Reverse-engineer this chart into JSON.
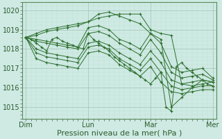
{
  "bg_color": "#ceeae3",
  "grid_color_major": "#a8c8bc",
  "grid_color_minor": "#bdddd5",
  "line_color": "#2d6e2d",
  "marker_color": "#2d6e2d",
  "xlabel": "Pression niveau de la mer( hPa )",
  "xlabel_fontsize": 8,
  "yticks": [
    1015,
    1016,
    1017,
    1018,
    1019,
    1020
  ],
  "ylim": [
    1014.4,
    1020.4
  ],
  "xtick_labels": [
    "Dim",
    "Lun",
    "Mar",
    "Mer"
  ],
  "xtick_positions": [
    0,
    72,
    144,
    216
  ],
  "xlim": [
    -4,
    220
  ],
  "series": [
    [
      0,
      1018.6,
      12,
      1018.8,
      24,
      1019.0,
      36,
      1019.1,
      48,
      1019.2,
      60,
      1019.3,
      72,
      1019.4,
      84,
      1019.6,
      96,
      1019.7,
      108,
      1019.8,
      120,
      1019.8,
      132,
      1019.8,
      144,
      1019.0,
      156,
      1018.8,
      168,
      1018.7,
      180,
      1016.2,
      192,
      1016.1,
      204,
      1016.2,
      216,
      1016.3
    ],
    [
      0,
      1018.6,
      12,
      1018.7,
      24,
      1018.9,
      36,
      1019.0,
      48,
      1019.1,
      60,
      1019.2,
      72,
      1019.4,
      84,
      1019.8,
      96,
      1019.9,
      108,
      1019.7,
      120,
      1019.5,
      132,
      1019.3,
      144,
      1018.8,
      156,
      1018.5,
      168,
      1015.0,
      180,
      1015.5,
      192,
      1016.0,
      204,
      1016.4,
      216,
      1016.3
    ],
    [
      0,
      1018.6,
      12,
      1018.5,
      24,
      1018.4,
      36,
      1018.3,
      48,
      1018.2,
      60,
      1018.1,
      72,
      1019.1,
      84,
      1019.2,
      96,
      1019.0,
      108,
      1018.5,
      120,
      1018.3,
      132,
      1018.0,
      144,
      1018.8,
      156,
      1018.3,
      168,
      1017.1,
      180,
      1016.8,
      192,
      1016.9,
      204,
      1017.0,
      216,
      1016.5
    ],
    [
      0,
      1018.6,
      12,
      1018.4,
      24,
      1018.3,
      36,
      1018.2,
      48,
      1018.1,
      60,
      1018.0,
      72,
      1018.8,
      84,
      1018.9,
      96,
      1018.7,
      108,
      1018.3,
      120,
      1018.0,
      132,
      1017.7,
      144,
      1018.5,
      156,
      1017.8,
      168,
      1016.8,
      180,
      1016.5,
      192,
      1016.6,
      204,
      1016.7,
      216,
      1016.4
    ],
    [
      0,
      1018.6,
      12,
      1018.0,
      24,
      1017.8,
      36,
      1017.7,
      48,
      1017.6,
      60,
      1017.5,
      72,
      1018.3,
      84,
      1018.4,
      96,
      1018.2,
      108,
      1017.8,
      120,
      1017.5,
      132,
      1017.2,
      144,
      1017.9,
      156,
      1017.3,
      168,
      1016.4,
      180,
      1016.2,
      192,
      1016.3,
      204,
      1016.4,
      216,
      1016.3
    ],
    [
      0,
      1018.6,
      12,
      1017.8,
      24,
      1017.6,
      36,
      1017.5,
      48,
      1017.4,
      60,
      1017.3,
      72,
      1018.1,
      84,
      1018.2,
      96,
      1018.0,
      108,
      1017.5,
      120,
      1017.2,
      132,
      1016.9,
      144,
      1017.5,
      156,
      1016.8,
      168,
      1016.1,
      180,
      1015.9,
      192,
      1016.0,
      204,
      1016.1,
      216,
      1016.1
    ],
    [
      0,
      1018.6,
      12,
      1017.5,
      24,
      1017.3,
      36,
      1017.2,
      48,
      1017.1,
      60,
      1017.0,
      72,
      1017.8,
      84,
      1017.9,
      96,
      1017.7,
      108,
      1017.2,
      120,
      1016.9,
      132,
      1016.6,
      144,
      1017.1,
      156,
      1016.3,
      168,
      1015.8,
      180,
      1015.7,
      192,
      1015.8,
      204,
      1015.9,
      216,
      1015.9
    ],
    [
      0,
      1018.6,
      6,
      1018.5,
      12,
      1018.3,
      18,
      1018.1,
      24,
      1017.9,
      30,
      1018.5,
      36,
      1018.6,
      42,
      1018.4,
      48,
      1018.3,
      54,
      1018.2,
      60,
      1018.1,
      66,
      1018.0,
      72,
      1018.8,
      78,
      1018.5,
      84,
      1018.3,
      90,
      1018.1,
      96,
      1017.9,
      102,
      1017.6,
      108,
      1017.4,
      114,
      1017.2,
      120,
      1017.0,
      126,
      1016.8,
      132,
      1016.6,
      138,
      1016.4,
      144,
      1016.2,
      150,
      1016.5,
      156,
      1016.8,
      162,
      1015.0,
      168,
      1014.8,
      174,
      1017.1,
      180,
      1017.3,
      186,
      1017.0,
      192,
      1016.8,
      198,
      1016.6,
      204,
      1016.4,
      210,
      1016.2,
      216,
      1016.1
    ]
  ]
}
